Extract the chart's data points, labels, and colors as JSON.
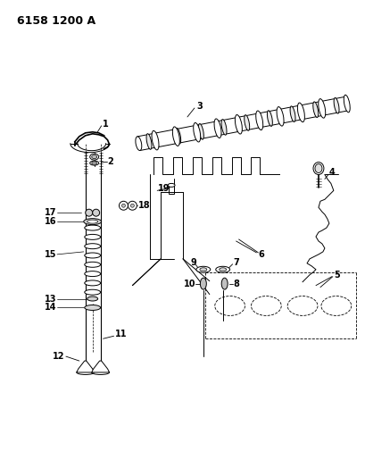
{
  "title": "6158 1200 A",
  "bg_color": "#ffffff",
  "line_color": "#000000",
  "title_fontsize": 9,
  "label_fontsize": 7,
  "fig_width": 4.1,
  "fig_height": 5.33,
  "dpi": 100
}
